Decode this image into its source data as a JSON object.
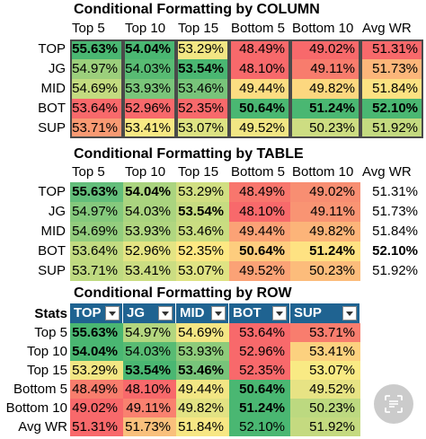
{
  "section1": {
    "title": "Conditional Formatting by COLUMN",
    "headers": [
      "Top 5",
      "Top 10",
      "Top 15",
      "Bottom 5",
      "Bottom 10",
      "Avg WR"
    ],
    "rows": [
      {
        "label": "TOP",
        "cells": [
          {
            "v": "55.63%",
            "c": "#4ab772",
            "b": true
          },
          {
            "v": "54.04%",
            "c": "#4ab772",
            "b": true
          },
          {
            "v": "53.29%",
            "c": "#f2e684",
            "b": false
          },
          {
            "v": "48.49%",
            "c": "#f8696b",
            "b": false
          },
          {
            "v": "49.02%",
            "c": "#f8696b",
            "b": false
          },
          {
            "v": "51.31%",
            "c": "#f8696b",
            "b": false
          }
        ]
      },
      {
        "label": "JG",
        "cells": [
          {
            "v": "54.97%",
            "c": "#9ccf7c",
            "b": false
          },
          {
            "v": "54.03%",
            "c": "#58bb73",
            "b": false
          },
          {
            "v": "53.54%",
            "c": "#4ab772",
            "b": true
          },
          {
            "v": "48.10%",
            "c": "#f8696b",
            "b": false
          },
          {
            "v": "49.11%",
            "c": "#f87c6d",
            "b": false
          },
          {
            "v": "51.73%",
            "c": "#fcb67a",
            "b": false
          }
        ]
      },
      {
        "label": "MID",
        "cells": [
          {
            "v": "54.69%",
            "c": "#c3db80",
            "b": false
          },
          {
            "v": "53.93%",
            "c": "#7ac57a",
            "b": false
          },
          {
            "v": "53.46%",
            "c": "#78c47a",
            "b": false
          },
          {
            "v": "49.44%",
            "c": "#fcdd82",
            "b": false
          },
          {
            "v": "49.82%",
            "c": "#fcd77f",
            "b": false
          },
          {
            "v": "51.84%",
            "c": "#fce282",
            "b": false
          }
        ]
      },
      {
        "label": "BOT",
        "cells": [
          {
            "v": "53.64%",
            "c": "#f8696b",
            "b": false
          },
          {
            "v": "52.96%",
            "c": "#f8696b",
            "b": false
          },
          {
            "v": "52.35%",
            "c": "#f8696b",
            "b": false
          },
          {
            "v": "50.64%",
            "c": "#4ab772",
            "b": true
          },
          {
            "v": "51.24%",
            "c": "#4ab772",
            "b": true
          },
          {
            "v": "52.10%",
            "c": "#4ab772",
            "b": true
          }
        ]
      },
      {
        "label": "SUP",
        "cells": [
          {
            "v": "53.71%",
            "c": "#f89a73",
            "b": false
          },
          {
            "v": "53.41%",
            "c": "#f8e984",
            "b": false
          },
          {
            "v": "53.07%",
            "c": "#dde383",
            "b": false
          },
          {
            "v": "49.52%",
            "c": "#f1e684",
            "b": false
          },
          {
            "v": "50.23%",
            "c": "#cddd82",
            "b": false
          },
          {
            "v": "51.92%",
            "c": "#c4da80",
            "b": false
          }
        ]
      }
    ]
  },
  "section2": {
    "title": "Conditional Formatting by TABLE",
    "headers": [
      "Top 5",
      "Top 10",
      "Top 15",
      "Bottom 5",
      "Bottom 10",
      "Avg WR"
    ],
    "rows": [
      {
        "label": "TOP",
        "cells": [
          {
            "v": "55.63%",
            "c": "#63be7b",
            "b": true
          },
          {
            "v": "54.04%",
            "c": "#aad47f",
            "b": true
          },
          {
            "v": "53.29%",
            "c": "#d1df82",
            "b": false
          },
          {
            "v": "48.49%",
            "c": "#f8766d",
            "b": false
          },
          {
            "v": "49.02%",
            "c": "#f88e72",
            "b": false
          },
          {
            "v": "51.31%",
            "c": "#ffffff",
            "b": false
          }
        ]
      },
      {
        "label": "JG",
        "cells": [
          {
            "v": "54.97%",
            "c": "#85c97d",
            "b": false
          },
          {
            "v": "54.03%",
            "c": "#aad47f",
            "b": false
          },
          {
            "v": "53.54%",
            "c": "#c6dc81",
            "b": true
          },
          {
            "v": "48.10%",
            "c": "#f8696b",
            "b": false
          },
          {
            "v": "49.11%",
            "c": "#f99473",
            "b": false
          },
          {
            "v": "51.73%",
            "c": "#ffffff",
            "b": false
          }
        ]
      },
      {
        "label": "MID",
        "cells": [
          {
            "v": "54.69%",
            "c": "#93cd7e",
            "b": false
          },
          {
            "v": "53.93%",
            "c": "#b0d680",
            "b": false
          },
          {
            "v": "53.46%",
            "c": "#c9dd81",
            "b": false
          },
          {
            "v": "49.44%",
            "c": "#fba276",
            "b": false
          },
          {
            "v": "49.82%",
            "c": "#fcb479",
            "b": false
          },
          {
            "v": "51.84%",
            "c": "#ffffff",
            "b": false
          }
        ]
      },
      {
        "label": "BOT",
        "cells": [
          {
            "v": "53.64%",
            "c": "#c2db81",
            "b": false
          },
          {
            "v": "52.96%",
            "c": "#e4e483",
            "b": false
          },
          {
            "v": "52.35%",
            "c": "#fde883",
            "b": false
          },
          {
            "v": "50.64%",
            "c": "#fdcd7e",
            "b": true
          },
          {
            "v": "51.24%",
            "c": "#fee282",
            "b": true
          },
          {
            "v": "52.10%",
            "c": "#ffffff",
            "b": true
          }
        ]
      },
      {
        "label": "SUP",
        "cells": [
          {
            "v": "53.71%",
            "c": "#bfda81",
            "b": false
          },
          {
            "v": "53.41%",
            "c": "#cbdd82",
            "b": false
          },
          {
            "v": "53.07%",
            "c": "#dfe383",
            "b": false
          },
          {
            "v": "49.52%",
            "c": "#fba276",
            "b": false
          },
          {
            "v": "50.23%",
            "c": "#fcbc7b",
            "b": false
          },
          {
            "v": "51.92%",
            "c": "#ffffff",
            "b": false
          }
        ]
      }
    ]
  },
  "section3": {
    "title": "Conditional Formatting by ROW",
    "stats_label": "Stats",
    "headers": [
      "TOP",
      "JG",
      "MID",
      "BOT",
      "SUP"
    ],
    "rows": [
      {
        "label": "Top 5",
        "cells": [
          {
            "v": "55.63%",
            "c": "#4ab772",
            "b": true
          },
          {
            "v": "54.97%",
            "c": "#b3d67f",
            "b": false
          },
          {
            "v": "54.69%",
            "c": "#f4e684",
            "b": false
          },
          {
            "v": "53.64%",
            "c": "#f8696b",
            "b": false
          },
          {
            "v": "53.71%",
            "c": "#f87d6e",
            "b": false
          }
        ]
      },
      {
        "label": "Top 10",
        "cells": [
          {
            "v": "54.04%",
            "c": "#4ab772",
            "b": true
          },
          {
            "v": "54.03%",
            "c": "#58bb73",
            "b": false
          },
          {
            "v": "53.93%",
            "c": "#8ecb7b",
            "b": false
          },
          {
            "v": "52.96%",
            "c": "#f8696b",
            "b": false
          },
          {
            "v": "53.41%",
            "c": "#fcd17f",
            "b": false
          }
        ]
      },
      {
        "label": "Top 15",
        "cells": [
          {
            "v": "53.29%",
            "c": "#f2e684",
            "b": false
          },
          {
            "v": "53.54%",
            "c": "#4ab772",
            "b": true
          },
          {
            "v": "53.46%",
            "c": "#78c47a",
            "b": true
          },
          {
            "v": "52.35%",
            "c": "#f8696b",
            "b": false
          },
          {
            "v": "53.07%",
            "c": "#f9ea84",
            "b": false
          }
        ]
      },
      {
        "label": "Bottom 5",
        "cells": [
          {
            "v": "48.49%",
            "c": "#f87d6d",
            "b": false
          },
          {
            "v": "48.10%",
            "c": "#f8696b",
            "b": false
          },
          {
            "v": "49.44%",
            "c": "#f2e684",
            "b": false
          },
          {
            "v": "50.64%",
            "c": "#4ab772",
            "b": true
          },
          {
            "v": "49.52%",
            "c": "#e7e384",
            "b": false
          }
        ]
      },
      {
        "label": "Bottom 10",
        "cells": [
          {
            "v": "49.02%",
            "c": "#f8696b",
            "b": false
          },
          {
            "v": "49.11%",
            "c": "#f9816f",
            "b": false
          },
          {
            "v": "49.82%",
            "c": "#e2e283",
            "b": false
          },
          {
            "v": "51.24%",
            "c": "#4ab772",
            "b": true
          },
          {
            "v": "50.23%",
            "c": "#bcd980",
            "b": false
          }
        ]
      },
      {
        "label": "Avg WR",
        "cells": [
          {
            "v": "51.31%",
            "c": "#f8696b",
            "b": false
          },
          {
            "v": "51.73%",
            "c": "#f9c07c",
            "b": false
          },
          {
            "v": "51.84%",
            "c": "#f7e784",
            "b": false
          },
          {
            "v": "52.10%",
            "c": "#4ab772",
            "b": false
          },
          {
            "v": "51.92%",
            "c": "#c4da80",
            "b": false
          }
        ]
      }
    ]
  },
  "overlay": {
    "icon": "scan-text-icon"
  }
}
